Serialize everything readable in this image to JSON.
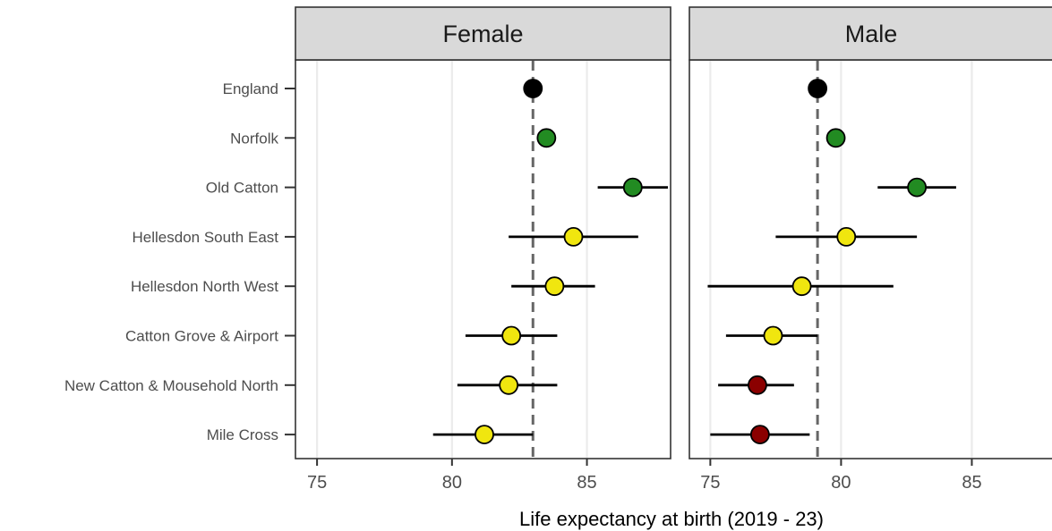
{
  "chart_data": {
    "type": "scatter",
    "facet_by": "sex",
    "xlabel": "Life expectancy at birth (2019 - 23)",
    "xlim": [
      74.2,
      88.1
    ],
    "x_ticks": [
      75,
      80,
      85
    ],
    "areas": [
      "England",
      "Norfolk",
      "Old Catton",
      "Hellesdon South East",
      "Hellesdon North West",
      "Catton Grove & Airport",
      "New Catton & Mousehold North",
      "Mile Cross"
    ],
    "colors": {
      "england": "#000000",
      "better": "#228b22",
      "similar": "#f0e60f",
      "worse": "#8b0000"
    },
    "panels": [
      {
        "label": "Female",
        "reference": 83.0,
        "points": [
          {
            "area": "England",
            "value": 83.0,
            "lower": null,
            "upper": null,
            "category": "england"
          },
          {
            "area": "Norfolk",
            "value": 83.5,
            "lower": null,
            "upper": null,
            "category": "better"
          },
          {
            "area": "Old Catton",
            "value": 86.7,
            "lower": 85.4,
            "upper": 88.0,
            "category": "better"
          },
          {
            "area": "Hellesdon South East",
            "value": 84.5,
            "lower": 82.1,
            "upper": 86.9,
            "category": "similar"
          },
          {
            "area": "Hellesdon North West",
            "value": 83.8,
            "lower": 82.2,
            "upper": 85.3,
            "category": "similar"
          },
          {
            "area": "Catton Grove & Airport",
            "value": 82.2,
            "lower": 80.5,
            "upper": 83.9,
            "category": "similar"
          },
          {
            "area": "New Catton & Mousehold North",
            "value": 82.1,
            "lower": 80.2,
            "upper": 83.9,
            "category": "similar"
          },
          {
            "area": "Mile Cross",
            "value": 81.2,
            "lower": 79.3,
            "upper": 83.0,
            "category": "similar"
          }
        ]
      },
      {
        "label": "Male",
        "reference": 79.1,
        "points": [
          {
            "area": "England",
            "value": 79.1,
            "lower": null,
            "upper": null,
            "category": "england"
          },
          {
            "area": "Norfolk",
            "value": 79.8,
            "lower": null,
            "upper": null,
            "category": "better"
          },
          {
            "area": "Old Catton",
            "value": 82.9,
            "lower": 81.4,
            "upper": 84.4,
            "category": "better"
          },
          {
            "area": "Hellesdon South East",
            "value": 80.2,
            "lower": 77.5,
            "upper": 82.9,
            "category": "similar"
          },
          {
            "area": "Hellesdon North West",
            "value": 78.5,
            "lower": 74.9,
            "upper": 82.0,
            "category": "similar"
          },
          {
            "area": "Catton Grove & Airport",
            "value": 77.4,
            "lower": 75.6,
            "upper": 79.1,
            "category": "similar"
          },
          {
            "area": "New Catton & Mousehold North",
            "value": 76.8,
            "lower": 75.3,
            "upper": 78.2,
            "category": "worse"
          },
          {
            "area": "Mile Cross",
            "value": 76.9,
            "lower": 75.0,
            "upper": 78.8,
            "category": "worse"
          }
        ]
      }
    ]
  }
}
